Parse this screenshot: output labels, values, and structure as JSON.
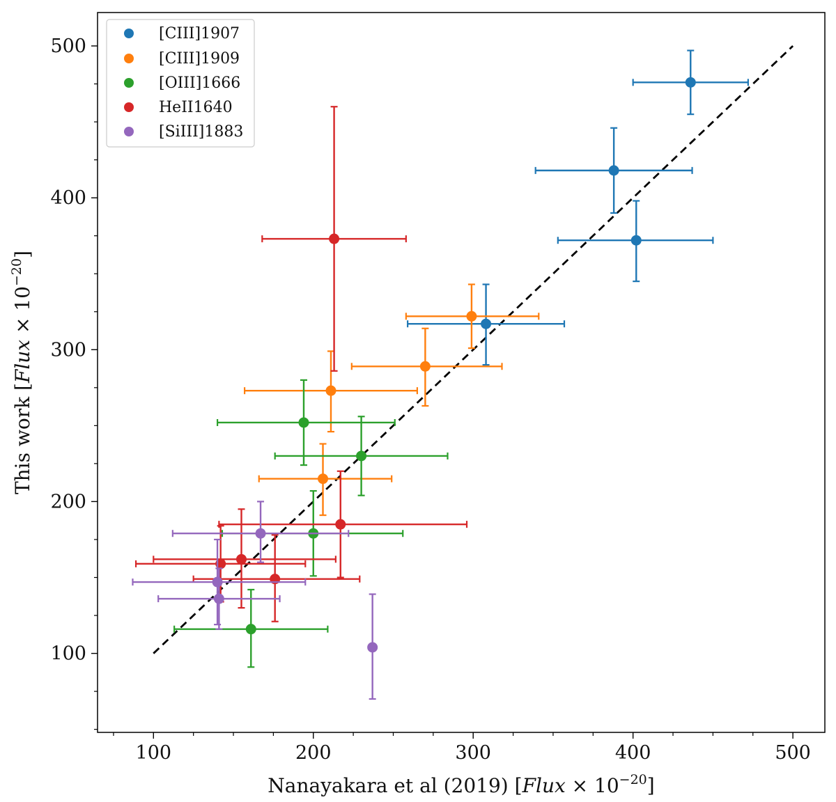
{
  "chart_data": {
    "type": "scatter",
    "xlabel_text": "Nanayakara et al (2019) [",
    "xlabel_math": "Flux",
    "xlabel_times": " × 10",
    "xlabel_exp": "−20",
    "xlabel_close": "]",
    "ylabel_text": "This work [",
    "ylabel_math": "Flux",
    "ylabel_times": " × 10",
    "ylabel_exp": "−20",
    "ylabel_close": "]",
    "xlim": [
      65,
      520
    ],
    "ylim": [
      48,
      522
    ],
    "xticks": [
      100,
      200,
      300,
      400,
      500
    ],
    "yticks": [
      100,
      200,
      300,
      400,
      500
    ],
    "xtick_labels": [
      "100",
      "200",
      "300",
      "400",
      "500"
    ],
    "ytick_labels": [
      "100",
      "200",
      "300",
      "400",
      "500"
    ],
    "minor_step": 25,
    "legend_position": "upper-left",
    "reference_line": {
      "style": "dashed",
      "color": "#000000",
      "from": [
        100,
        100
      ],
      "to": [
        500,
        500
      ]
    },
    "series": [
      {
        "name": "[CIII]1907",
        "color": "#1f77b4",
        "points": [
          {
            "x": 436,
            "y": 476,
            "xerr": [
              400,
              472
            ],
            "yerr": [
              455,
              497
            ]
          },
          {
            "x": 388,
            "y": 418,
            "xerr": [
              339,
              437
            ],
            "yerr": [
              390,
              446
            ]
          },
          {
            "x": 402,
            "y": 372,
            "xerr": [
              353,
              450
            ],
            "yerr": [
              345,
              398
            ]
          },
          {
            "x": 308,
            "y": 317,
            "xerr": [
              259,
              357
            ],
            "yerr": [
              290,
              343
            ]
          }
        ]
      },
      {
        "name": "[CIII]1909",
        "color": "#ff7f0e",
        "points": [
          {
            "x": 299,
            "y": 322,
            "xerr": [
              258,
              341
            ],
            "yerr": [
              301,
              343
            ]
          },
          {
            "x": 270,
            "y": 289,
            "xerr": [
              224,
              318
            ],
            "yerr": [
              263,
              314
            ]
          },
          {
            "x": 211,
            "y": 273,
            "xerr": [
              157,
              265
            ],
            "yerr": [
              246,
              299
            ]
          },
          {
            "x": 206,
            "y": 215,
            "xerr": [
              166,
              249
            ],
            "yerr": [
              191,
              238
            ]
          }
        ]
      },
      {
        "name": "[OIII]1666",
        "color": "#2ca02c",
        "points": [
          {
            "x": 194,
            "y": 252,
            "xerr": [
              140,
              251
            ],
            "yerr": [
              224,
              280
            ]
          },
          {
            "x": 230,
            "y": 230,
            "xerr": [
              176,
              284
            ],
            "yerr": [
              204,
              256
            ]
          },
          {
            "x": 200,
            "y": 179,
            "xerr": [
              143,
              256
            ],
            "yerr": [
              151,
              207
            ]
          },
          {
            "x": 161,
            "y": 116,
            "xerr": [
              113,
              209
            ],
            "yerr": [
              91,
              142
            ]
          }
        ]
      },
      {
        "name": "HeII1640",
        "color": "#d62728",
        "points": [
          {
            "x": 213,
            "y": 373,
            "xerr": [
              168,
              258
            ],
            "yerr": [
              286,
              460
            ]
          },
          {
            "x": 217,
            "y": 185,
            "xerr": [
              141,
              296
            ],
            "yerr": [
              150,
              220
            ]
          },
          {
            "x": 155,
            "y": 162,
            "xerr": [
              100,
              214
            ],
            "yerr": [
              130,
              195
            ]
          },
          {
            "x": 142,
            "y": 159,
            "xerr": [
              89,
              195
            ],
            "yerr": [
              134,
              184
            ]
          },
          {
            "x": 176,
            "y": 149,
            "xerr": [
              125,
              229
            ],
            "yerr": [
              121,
              178
            ]
          }
        ]
      },
      {
        "name": "[SiIII]1883",
        "color": "#9467bd",
        "points": [
          {
            "x": 167,
            "y": 179,
            "xerr": [
              112,
              222
            ],
            "yerr": [
              160,
              200
            ]
          },
          {
            "x": 140,
            "y": 147,
            "xerr": [
              87,
              195
            ],
            "yerr": [
              119,
              175
            ]
          },
          {
            "x": 141,
            "y": 136,
            "xerr": [
              103,
              179
            ],
            "yerr": [
              116,
              156
            ]
          },
          {
            "x": 237,
            "y": 104,
            "xerr": [
              237,
              237
            ],
            "yerr": [
              70,
              139
            ]
          }
        ]
      }
    ]
  }
}
